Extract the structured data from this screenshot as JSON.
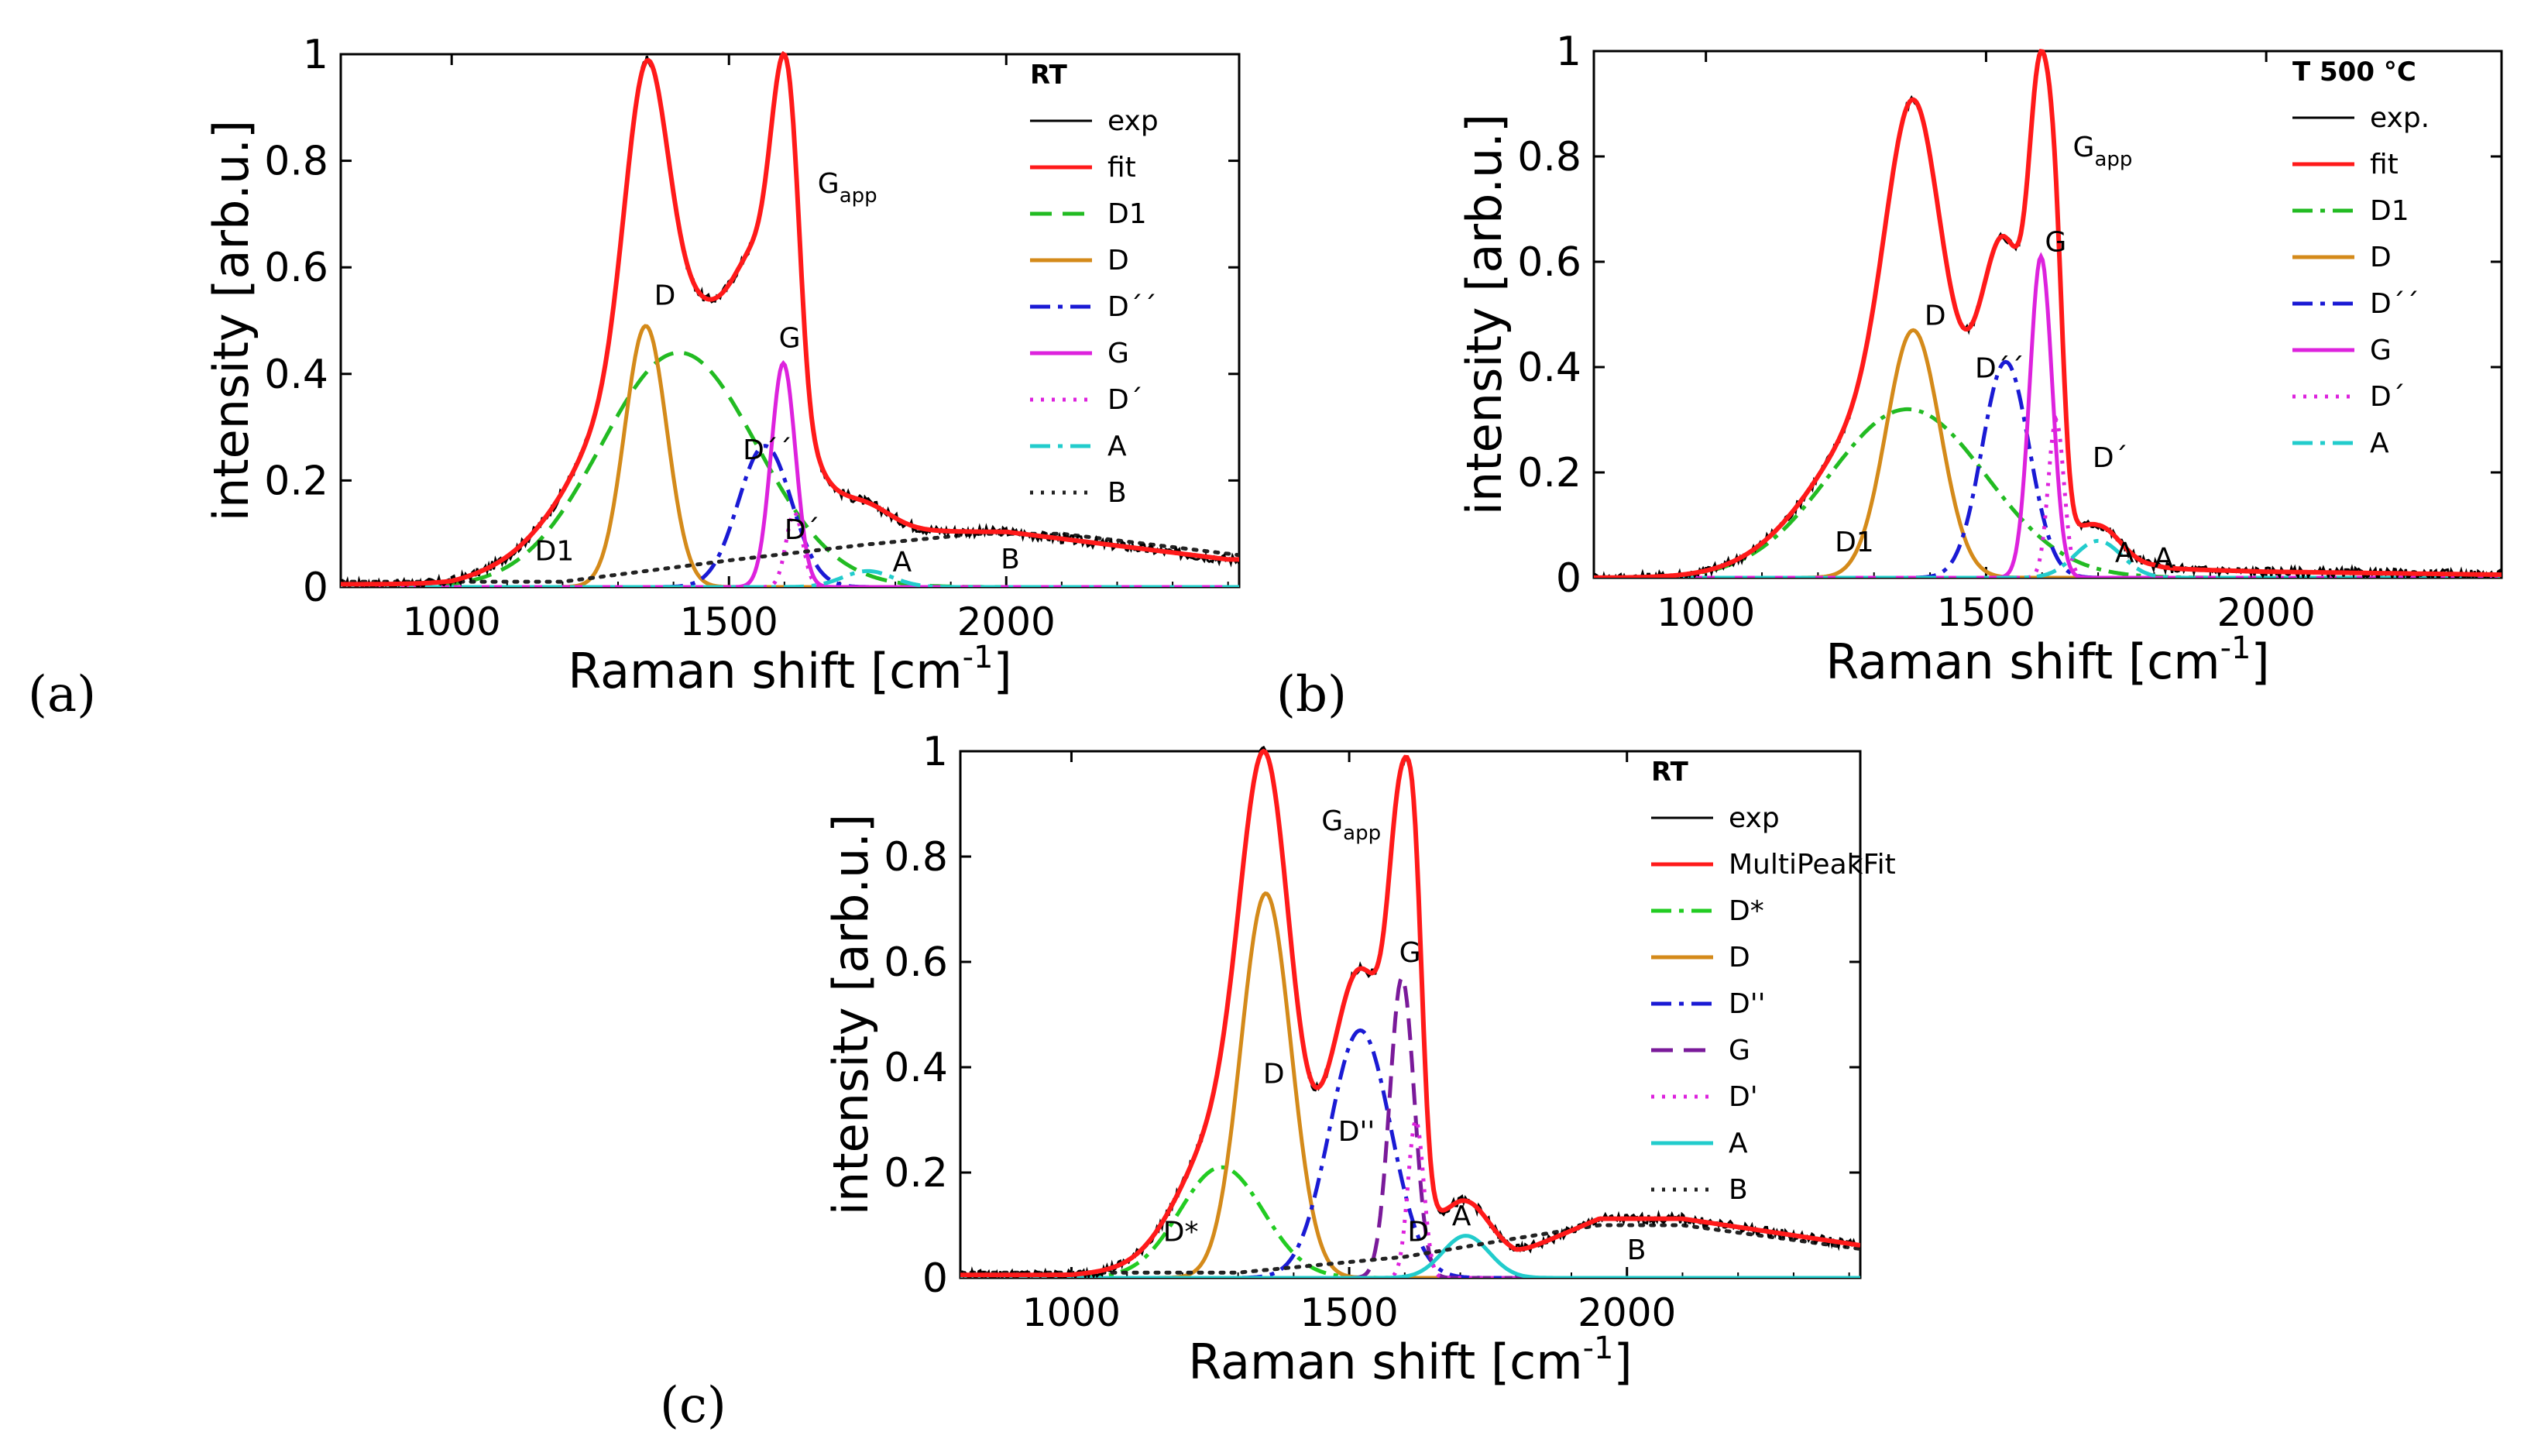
{
  "chart_data": [
    {
      "type": "line",
      "panel": "(a)",
      "xlabel": "Raman shift [cm",
      "xlabel_sup": "-1",
      "xlabel_tail": "]",
      "ylabel": "intensity  [arb.u.]",
      "xlim": [
        800,
        2420
      ],
      "ylim": [
        0,
        1
      ],
      "xticks": [
        1000,
        1500,
        2000
      ],
      "yticks": [
        0,
        0.2,
        0.4,
        0.6,
        0.8,
        1
      ],
      "ytick_labels": [
        "0",
        "0.2",
        "0.4",
        "0.6",
        "0.8",
        "1"
      ],
      "legend_title": "RT",
      "legend_position": "top-right",
      "series": [
        {
          "name": "exp",
          "role": "exp",
          "color": "#000000",
          "dash": "none",
          "peaks": [],
          "background": [
            [
              1000,
              0.005
            ],
            [
              1200,
              0.03
            ],
            [
              1350,
              0.06
            ],
            [
              1600,
              0.1
            ],
            [
              2000,
              0.1
            ],
            [
              2400,
              0.05
            ]
          ]
        },
        {
          "name": "fit",
          "role": "fit",
          "color": "#ff1a1a",
          "dash": "none",
          "peaks": []
        },
        {
          "name": "D1",
          "role": "peak",
          "color": "#22bb22",
          "dash": "dash",
          "peaks": [
            [
              1410,
              0.44,
              140
            ]
          ]
        },
        {
          "name": "D",
          "role": "peak",
          "color": "#d48a1a",
          "dash": "none",
          "peaks": [
            [
              1350,
              0.49,
              38
            ]
          ]
        },
        {
          "name": "D´´",
          "role": "peak",
          "color": "#1a1ad4",
          "dash": "dashdot",
          "peaks": [
            [
              1565,
              0.265,
              48
            ]
          ]
        },
        {
          "name": "G",
          "role": "peak",
          "color": "#dd22dd",
          "dash": "none",
          "peaks": [
            [
              1598,
              0.42,
              22
            ]
          ]
        },
        {
          "name": "D´",
          "role": "peak",
          "color": "#dd22dd",
          "dash": "dot",
          "peaks": [
            [
              1618,
              0.14,
              15
            ]
          ]
        },
        {
          "name": "A",
          "role": "peak",
          "color": "#22cccc",
          "dash": "dashdot",
          "peaks": [
            [
              1750,
              0.03,
              45
            ]
          ]
        },
        {
          "name": "B",
          "role": "bg",
          "color": "#222222",
          "dash": "dot",
          "points": [
            [
              1200,
              0.01
            ],
            [
              1500,
              0.05
            ],
            [
              1750,
              0.08
            ],
            [
              1950,
              0.1
            ],
            [
              2100,
              0.1
            ],
            [
              2420,
              0.06
            ]
          ]
        }
      ],
      "annotations": [
        {
          "text": "G",
          "sub": "app",
          "x": 1660,
          "y": 0.74
        },
        {
          "text": "D",
          "x": 1365,
          "y": 0.53
        },
        {
          "text": "G",
          "x": 1590,
          "y": 0.45
        },
        {
          "text": "D´´",
          "x": 1525,
          "y": 0.24
        },
        {
          "text": "D´",
          "x": 1600,
          "y": 0.09
        },
        {
          "text": "D1",
          "x": 1150,
          "y": 0.05
        },
        {
          "text": "A",
          "x": 1795,
          "y": 0.03
        },
        {
          "text": "B",
          "x": 1990,
          "y": 0.035
        }
      ]
    },
    {
      "type": "line",
      "panel": "(b)",
      "xlabel": "Raman shift [cm",
      "xlabel_sup": "-1",
      "xlabel_tail": "]",
      "ylabel": "intensity  [arb.u.]",
      "xlim": [
        800,
        2420
      ],
      "ylim": [
        0,
        1
      ],
      "xticks": [
        1000,
        1500,
        2000
      ],
      "yticks": [
        0,
        0.2,
        0.4,
        0.6,
        0.8,
        1
      ],
      "ytick_labels": [
        "0",
        "0.2",
        "0.4",
        "0.6",
        "0.8",
        "1"
      ],
      "legend_title": "T 500 °C",
      "legend_position": "top-right",
      "series": [
        {
          "name": "exp.",
          "role": "exp",
          "color": "#000000",
          "dash": "none",
          "peaks": [],
          "background": [
            [
              1700,
              0.0
            ],
            [
              1800,
              0.015
            ],
            [
              2000,
              0.01
            ],
            [
              2420,
              0.005
            ]
          ]
        },
        {
          "name": "fit",
          "role": "fit",
          "color": "#ff1a1a",
          "dash": "none",
          "peaks": []
        },
        {
          "name": "D1",
          "role": "peak",
          "color": "#22bb22",
          "dash": "dashdot",
          "peaks": [
            [
              1360,
              0.32,
              140
            ]
          ]
        },
        {
          "name": "D",
          "role": "peak",
          "color": "#d48a1a",
          "dash": "none",
          "peaks": [
            [
              1370,
              0.47,
              48
            ]
          ]
        },
        {
          "name": "D´´",
          "role": "peak",
          "color": "#1a1ad4",
          "dash": "dashdot",
          "peaks": [
            [
              1535,
              0.41,
              42
            ]
          ]
        },
        {
          "name": "G",
          "role": "peak",
          "color": "#dd22dd",
          "dash": "none",
          "peaks": [
            [
              1598,
              0.61,
              20
            ]
          ]
        },
        {
          "name": "D´",
          "role": "peak",
          "color": "#dd22dd",
          "dash": "dot",
          "peaks": [
            [
              1625,
              0.3,
              14
            ]
          ]
        },
        {
          "name": "A",
          "role": "peak",
          "color": "#22cccc",
          "dash": "dashdot",
          "peaks": [
            [
              1700,
              0.07,
              42
            ]
          ]
        }
      ],
      "annotations": [
        {
          "text": "G",
          "sub": "app",
          "x": 1655,
          "y": 0.8
        },
        {
          "text": "D",
          "x": 1390,
          "y": 0.48
        },
        {
          "text": "G",
          "x": 1605,
          "y": 0.62
        },
        {
          "text": "D´´",
          "x": 1480,
          "y": 0.38
        },
        {
          "text": "D´",
          "x": 1690,
          "y": 0.21
        },
        {
          "text": "D1",
          "x": 1230,
          "y": 0.05
        },
        {
          "text": "A",
          "x": 1730,
          "y": 0.03
        },
        {
          "text": "A",
          "x": 1800,
          "y": 0.02
        }
      ]
    },
    {
      "type": "line",
      "panel": "(c)",
      "xlabel": "Raman shift [cm",
      "xlabel_sup": "-1",
      "xlabel_tail": "]",
      "ylabel": "intensity  [arb.u.]",
      "xlim": [
        800,
        2420
      ],
      "ylim": [
        0,
        1
      ],
      "xticks": [
        1000,
        1500,
        2000
      ],
      "yticks": [
        0,
        0.2,
        0.4,
        0.6,
        0.8,
        1
      ],
      "ytick_labels": [
        "0",
        "0.2",
        "0.4",
        "0.6",
        "0.8",
        "1"
      ],
      "legend_title": "RT",
      "legend_position": "top-right",
      "series": [
        {
          "name": "exp",
          "role": "exp",
          "color": "#000000",
          "dash": "none",
          "peaks": [],
          "background": [
            [
              1000,
              0.005
            ],
            [
              1200,
              0.02
            ],
            [
              1300,
              0.03
            ],
            [
              1500,
              0.05
            ],
            [
              1700,
              0.05
            ],
            [
              1800,
              0.04
            ],
            [
              1950,
              0.1
            ],
            [
              2100,
              0.1
            ],
            [
              2420,
              0.055
            ]
          ]
        },
        {
          "name": "MultiPeakFit",
          "role": "fit",
          "color": "#ff1a1a",
          "dash": "none",
          "peaks": []
        },
        {
          "name": "D*",
          "role": "peak",
          "color": "#22cc22",
          "dash": "dashdot",
          "peaks": [
            [
              1270,
              0.21,
              75
            ]
          ]
        },
        {
          "name": "D",
          "role": "peak",
          "color": "#d48a1a",
          "dash": "none",
          "peaks": [
            [
              1350,
              0.73,
              45
            ]
          ]
        },
        {
          "name": "D''",
          "role": "peak",
          "color": "#1a1ad4",
          "dash": "dashdot",
          "peaks": [
            [
              1520,
              0.47,
              55
            ]
          ]
        },
        {
          "name": "G",
          "role": "peak",
          "color": "#7a1a9a",
          "dash": "dash",
          "peaks": [
            [
              1595,
              0.57,
              22
            ]
          ]
        },
        {
          "name": "D'",
          "role": "peak",
          "color": "#dd22dd",
          "dash": "dot",
          "peaks": [
            [
              1620,
              0.3,
              14
            ]
          ]
        },
        {
          "name": "A",
          "role": "peak",
          "color": "#22cccc",
          "dash": "none",
          "peaks": [
            [
              1710,
              0.08,
              42
            ]
          ]
        },
        {
          "name": "B",
          "role": "bg",
          "color": "#222222",
          "dash": "dot",
          "points": [
            [
              1300,
              0.01
            ],
            [
              1600,
              0.04
            ],
            [
              1800,
              0.075
            ],
            [
              1950,
              0.1
            ],
            [
              2100,
              0.1
            ],
            [
              2420,
              0.055
            ]
          ]
        }
      ],
      "annotations": [
        {
          "text": "G",
          "sub": "app",
          "x": 1450,
          "y": 0.85
        },
        {
          "text": "D",
          "x": 1345,
          "y": 0.37
        },
        {
          "text": "G",
          "x": 1590,
          "y": 0.6
        },
        {
          "text": "D''",
          "x": 1480,
          "y": 0.26
        },
        {
          "text": "D*",
          "x": 1165,
          "y": 0.07
        },
        {
          "text": "D",
          "x": 1605,
          "y": 0.07
        },
        {
          "text": "A",
          "x": 1685,
          "y": 0.1
        },
        {
          "text": "B",
          "x": 2000,
          "y": 0.035
        }
      ]
    }
  ]
}
